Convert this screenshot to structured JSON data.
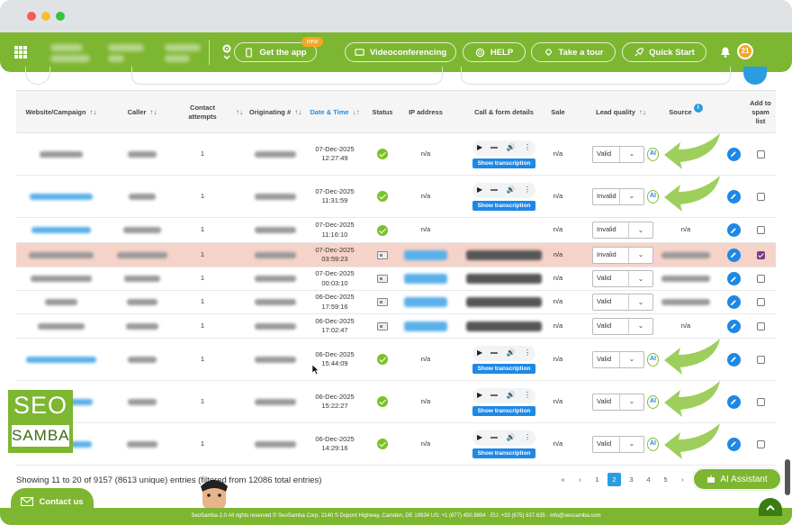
{
  "window": {
    "traffic_lights": [
      "#f25f58",
      "#fbbd2e",
      "#38c23f"
    ]
  },
  "nav": {
    "get_app": "Get the app",
    "new_badge": "new",
    "videoconferencing": "Videoconferencing",
    "help": "HELP",
    "take_tour": "Take a tour",
    "quick_start": "Quick Start",
    "notifications": "21"
  },
  "table": {
    "headers": {
      "website": "Website/Campaign",
      "caller": "Caller",
      "contact_attempts": "Contact attempts",
      "originating": "Originating #",
      "datetime": "Date & Time",
      "status": "Status",
      "ip": "IP address",
      "call_form": "Call & form details",
      "sale": "Sale",
      "lead_quality": "Lead quality",
      "source": "Source",
      "spam": "Add to spam list"
    },
    "rows": [
      {
        "attempts": "1",
        "date": "07-Dec-2025",
        "time": "12:27:49",
        "ip": "n/a",
        "sale": "n/a",
        "quality": "Valid",
        "source": "",
        "type": "call",
        "spam": false,
        "arrow": true,
        "ai": true
      },
      {
        "attempts": "1",
        "date": "07-Dec-2025",
        "time": "11:31:59",
        "ip": "n/a",
        "sale": "n/a",
        "quality": "Invalid",
        "source": "",
        "type": "call",
        "spam": false,
        "arrow": true,
        "ai": true
      },
      {
        "attempts": "1",
        "date": "07-Dec-2025",
        "time": "11:16:10",
        "ip": "n/a",
        "sale": "n/a",
        "quality": "Invalid",
        "source": "n/a",
        "type": "none",
        "spam": false,
        "arrow": false,
        "ai": false
      },
      {
        "attempts": "1",
        "date": "07-Dec-2025",
        "time": "03:59:23",
        "ip": "",
        "sale": "n/a",
        "quality": "Invalid",
        "source": "",
        "type": "form",
        "spam": true,
        "arrow": false,
        "ai": false
      },
      {
        "attempts": "1",
        "date": "07-Dec-2025",
        "time": "00:03:10",
        "ip": "",
        "sale": "n/a",
        "quality": "Valid",
        "source": "",
        "type": "form",
        "spam": false,
        "arrow": false,
        "ai": false
      },
      {
        "attempts": "1",
        "date": "06-Dec-2025",
        "time": "17:59:16",
        "ip": "",
        "sale": "n/a",
        "quality": "Valid",
        "source": "",
        "type": "form",
        "spam": false,
        "arrow": false,
        "ai": false
      },
      {
        "attempts": "1",
        "date": "06-Dec-2025",
        "time": "17:02:47",
        "ip": "",
        "sale": "n/a",
        "quality": "Valid",
        "source": "n/a",
        "type": "form",
        "spam": false,
        "arrow": false,
        "ai": false
      },
      {
        "attempts": "1",
        "date": "06-Dec-2025",
        "time": "15:44:09",
        "ip": "n/a",
        "sale": "n/a",
        "quality": "Valid",
        "source": "",
        "type": "call",
        "spam": false,
        "arrow": true,
        "ai": true
      },
      {
        "attempts": "1",
        "date": "06-Dec-2025",
        "time": "15:22:27",
        "ip": "n/a",
        "sale": "n/a",
        "quality": "Valid",
        "source": "",
        "type": "call",
        "spam": false,
        "arrow": true,
        "ai": true
      },
      {
        "attempts": "1",
        "date": "06-Dec-2025",
        "time": "14:29:16",
        "ip": "n/a",
        "sale": "n/a",
        "quality": "Valid",
        "source": "",
        "type": "call",
        "spam": false,
        "arrow": true,
        "ai": true
      }
    ],
    "show_transcription": "Show transcription"
  },
  "footer": {
    "entries_text": "Showing 11 to 20 of 9157 (8613 unique) entries (filtered from 12086 total entries)",
    "pages": [
      "«",
      "‹",
      "1",
      "2",
      "3",
      "4",
      "5",
      "›"
    ],
    "current_page": "2",
    "ai_assistant": "AI Assistant",
    "contact_us": "Contact us",
    "copyright": "SeoSamba 2.0  All rights reserved © SeoSamba Corp. 2140 S Dupont Highway, Camden, DE 19934 US: +1 (877) 450.9894 · EU: +33 (675) 637.635 · info@seosamba.com"
  },
  "logo": {
    "line1": "SEO",
    "line2": "SAMBA"
  },
  "colors": {
    "brand_green": "#7db630",
    "link_blue": "#1e88e5",
    "spam_row": "#f6d3c9"
  }
}
